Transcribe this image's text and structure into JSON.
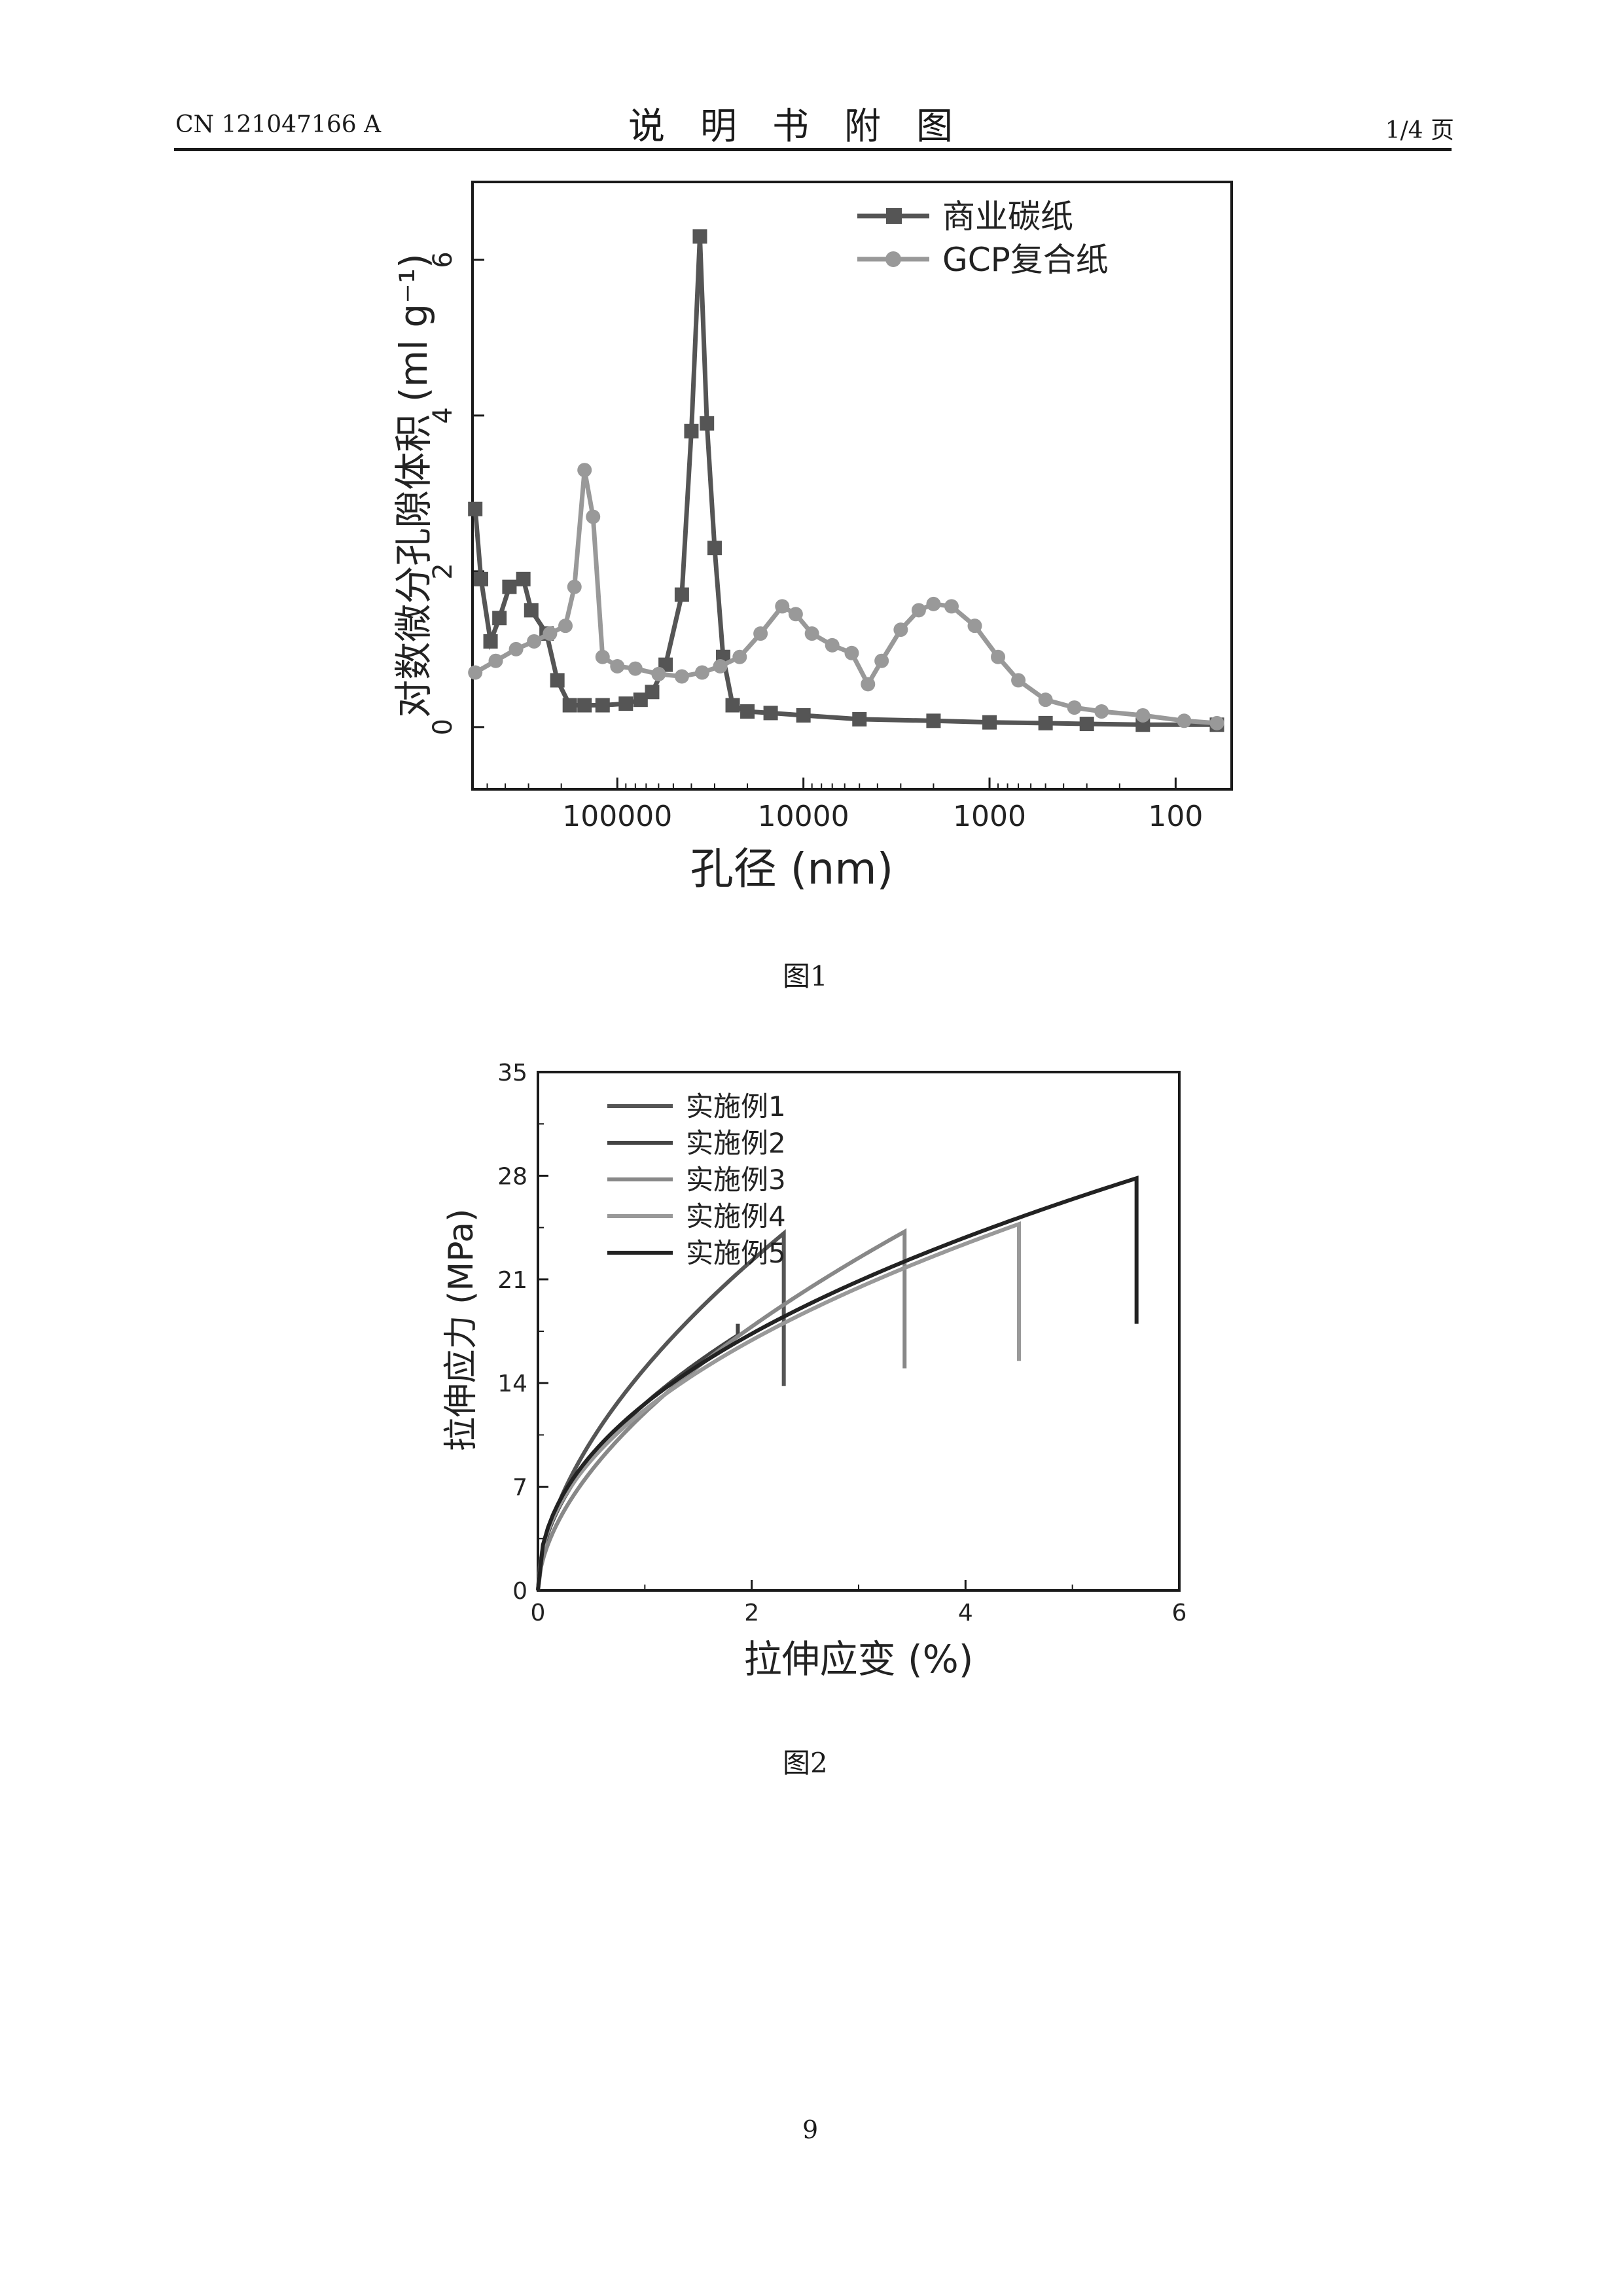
{
  "header": {
    "doc_number": "CN 121047166 A",
    "title": "说明书附图",
    "page_label": "1/4 页"
  },
  "figures": [
    {
      "caption": "图1"
    },
    {
      "caption": "图2"
    }
  ],
  "page_number": "9",
  "colors": {
    "ink": "#1a1a1a",
    "series_dark": "#555555",
    "series_light": "#999999"
  },
  "chart_data": [
    {
      "type": "line",
      "xlabel": "孔径 (nm)",
      "ylabel": "对数微分孔隙体积 (ml g⁻¹)",
      "x_scale": "log-reversed",
      "xlim": [
        600000,
        50
      ],
      "ylim": [
        -0.8,
        7.0
      ],
      "xticks": [
        100000,
        10000,
        1000,
        100
      ],
      "xtick_labels": [
        "100000",
        "10000",
        "1000",
        "100"
      ],
      "yticks": [
        0,
        2,
        4,
        6
      ],
      "ytick_labels": [
        "0",
        "2",
        "4",
        "6"
      ],
      "legend_position": "top-right",
      "series": [
        {
          "name": "商业碳纸",
          "marker": "square",
          "color": "#555555",
          "points": [
            [
              580000,
              2.8
            ],
            [
              540000,
              1.9
            ],
            [
              480000,
              1.1
            ],
            [
              430000,
              1.4
            ],
            [
              380000,
              1.8
            ],
            [
              320000,
              1.9
            ],
            [
              290000,
              1.5
            ],
            [
              240000,
              1.2
            ],
            [
              210000,
              0.6
            ],
            [
              180000,
              0.28
            ],
            [
              150000,
              0.28
            ],
            [
              120000,
              0.28
            ],
            [
              90000,
              0.3
            ],
            [
              75000,
              0.35
            ],
            [
              65000,
              0.45
            ],
            [
              55000,
              0.8
            ],
            [
              45000,
              1.7
            ],
            [
              40000,
              3.8
            ],
            [
              36000,
              6.3
            ],
            [
              33000,
              3.9
            ],
            [
              30000,
              2.3
            ],
            [
              27000,
              0.9
            ],
            [
              24000,
              0.28
            ],
            [
              20000,
              0.2
            ],
            [
              15000,
              0.18
            ],
            [
              10000,
              0.15
            ],
            [
              5000,
              0.1
            ],
            [
              2000,
              0.08
            ],
            [
              1000,
              0.06
            ],
            [
              500,
              0.05
            ],
            [
              300,
              0.04
            ],
            [
              150,
              0.03
            ],
            [
              60,
              0.03
            ]
          ]
        },
        {
          "name": "GCP复合纸",
          "marker": "circle",
          "color": "#999999",
          "points": [
            [
              580000,
              0.7
            ],
            [
              450000,
              0.85
            ],
            [
              350000,
              1.0
            ],
            [
              280000,
              1.1
            ],
            [
              230000,
              1.2
            ],
            [
              190000,
              1.3
            ],
            [
              170000,
              1.8
            ],
            [
              150000,
              3.3
            ],
            [
              135000,
              2.7
            ],
            [
              120000,
              0.9
            ],
            [
              100000,
              0.78
            ],
            [
              80000,
              0.75
            ],
            [
              60000,
              0.68
            ],
            [
              45000,
              0.65
            ],
            [
              35000,
              0.7
            ],
            [
              28000,
              0.78
            ],
            [
              22000,
              0.9
            ],
            [
              17000,
              1.2
            ],
            [
              13000,
              1.55
            ],
            [
              11000,
              1.45
            ],
            [
              9000,
              1.2
            ],
            [
              7000,
              1.05
            ],
            [
              5500,
              0.95
            ],
            [
              4500,
              0.55
            ],
            [
              3800,
              0.85
            ],
            [
              3000,
              1.25
            ],
            [
              2400,
              1.5
            ],
            [
              2000,
              1.58
            ],
            [
              1600,
              1.55
            ],
            [
              1200,
              1.3
            ],
            [
              900,
              0.9
            ],
            [
              700,
              0.6
            ],
            [
              500,
              0.35
            ],
            [
              350,
              0.25
            ],
            [
              250,
              0.2
            ],
            [
              150,
              0.15
            ],
            [
              90,
              0.08
            ],
            [
              60,
              0.05
            ]
          ]
        }
      ]
    },
    {
      "type": "line",
      "xlabel": "拉伸应变 (%)",
      "ylabel": "拉伸应力 (MPa)",
      "xlim": [
        0,
        6
      ],
      "ylim": [
        0,
        35
      ],
      "xticks": [
        0,
        2,
        4,
        6
      ],
      "xtick_labels": [
        "0",
        "2",
        "4",
        "6"
      ],
      "yticks": [
        0,
        7,
        14,
        21,
        28,
        35
      ],
      "ytick_labels": [
        "0",
        "7",
        "14",
        "21",
        "28",
        "35"
      ],
      "legend_position": "top-left",
      "series": [
        {
          "name": "实施例1",
          "color": "#555555",
          "k": 15.0,
          "n": 0.57,
          "break_strain": 2.3,
          "drop_to": 13.8
        },
        {
          "name": "实施例2",
          "color": "#444444",
          "k": 12.6,
          "n": 0.5,
          "break_strain": 1.87,
          "drop_to": 18.0
        },
        {
          "name": "实施例3",
          "color": "#888888",
          "k": 12.0,
          "n": 0.57,
          "break_strain": 3.43,
          "drop_to": 15.0
        },
        {
          "name": "实施例4",
          "color": "#999999",
          "k": 12.2,
          "n": 0.47,
          "break_strain": 4.5,
          "drop_to": 15.5
        },
        {
          "name": "实施例5",
          "color": "#222222",
          "k": 12.6,
          "n": 0.46,
          "break_strain": 5.6,
          "drop_to": 18.0
        }
      ]
    }
  ]
}
